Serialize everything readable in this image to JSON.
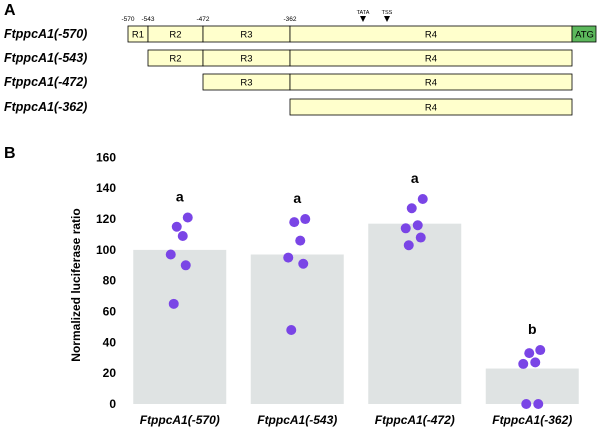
{
  "panel_a": {
    "letter": "A",
    "positions": [
      "-570",
      "-543",
      "-472",
      "-362"
    ],
    "markers": [
      "TATA",
      "TSS"
    ],
    "atg_label": "ATG",
    "constructs": [
      {
        "label": "FtppcA1(-570)",
        "regions": [
          "R1",
          "R2",
          "R3",
          "R4"
        ],
        "atg": true
      },
      {
        "label": "FtppcA1(-543)",
        "regions": [
          "R2",
          "R3",
          "R4"
        ],
        "atg": false
      },
      {
        "label": "FtppcA1(-472)",
        "regions": [
          "R3",
          "R4"
        ],
        "atg": false
      },
      {
        "label": "FtppcA1(-362)",
        "regions": [
          "R4"
        ],
        "atg": false
      }
    ],
    "colors": {
      "box": "#ffffcc",
      "atg": "#5cb85c",
      "border": "#000000"
    }
  },
  "panel_b": {
    "letter": "B"
  },
  "chart_data": {
    "type": "bar",
    "ylabel": "Normalized luciferase ratio",
    "xlabel": "",
    "ylim": [
      0,
      170
    ],
    "yticks": [
      0,
      20,
      40,
      60,
      80,
      100,
      120,
      140,
      160
    ],
    "categories": [
      "FtppcA1(-570)",
      "FtppcA1(-543)",
      "FtppcA1(-472)",
      "FtppcA1(-362)"
    ],
    "values": [
      100,
      97,
      117,
      23
    ],
    "points": [
      [
        65,
        90,
        97,
        109,
        115,
        121
      ],
      [
        48,
        91,
        95,
        106,
        118,
        120
      ],
      [
        103,
        108,
        114,
        116,
        127,
        133
      ],
      [
        0,
        0,
        26,
        27,
        33,
        35
      ]
    ],
    "significance": [
      "a",
      "a",
      "a",
      "b"
    ],
    "colors": {
      "bar": "#dfe3e3",
      "point": "#7a45e6"
    }
  }
}
